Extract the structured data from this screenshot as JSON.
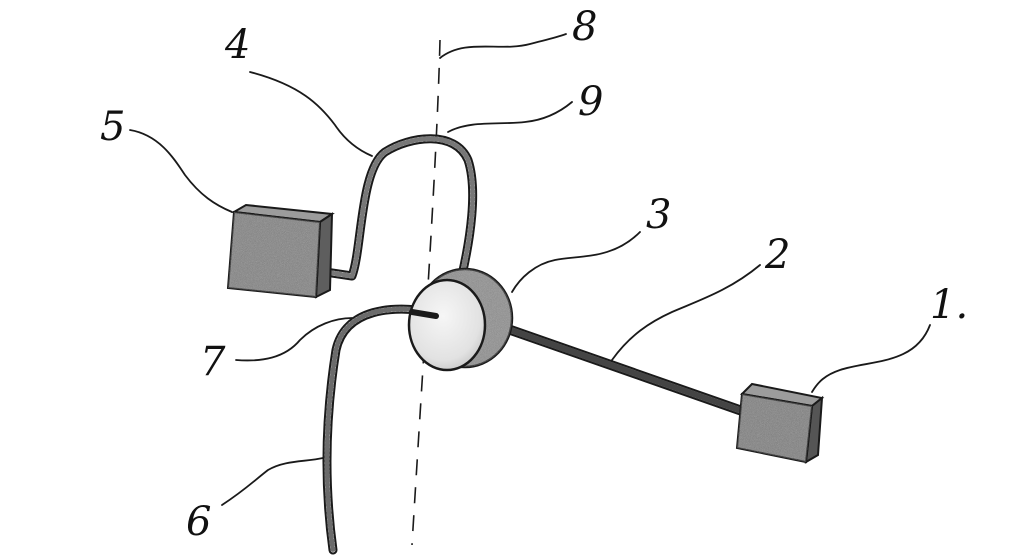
{
  "figure": {
    "labels": {
      "l1": "1.",
      "l2": "2",
      "l3": "3",
      "l4": "4",
      "l5": "5",
      "l6": "6",
      "l7": "7",
      "l8": "8",
      "l9": "9"
    },
    "colors": {
      "ink": "#1a1a1a",
      "stipple": "#6b6b6b",
      "box_fill": "#7d7d7d",
      "disc_fill": "#eeeeee",
      "rim_fill": "#8a8a8a"
    }
  }
}
